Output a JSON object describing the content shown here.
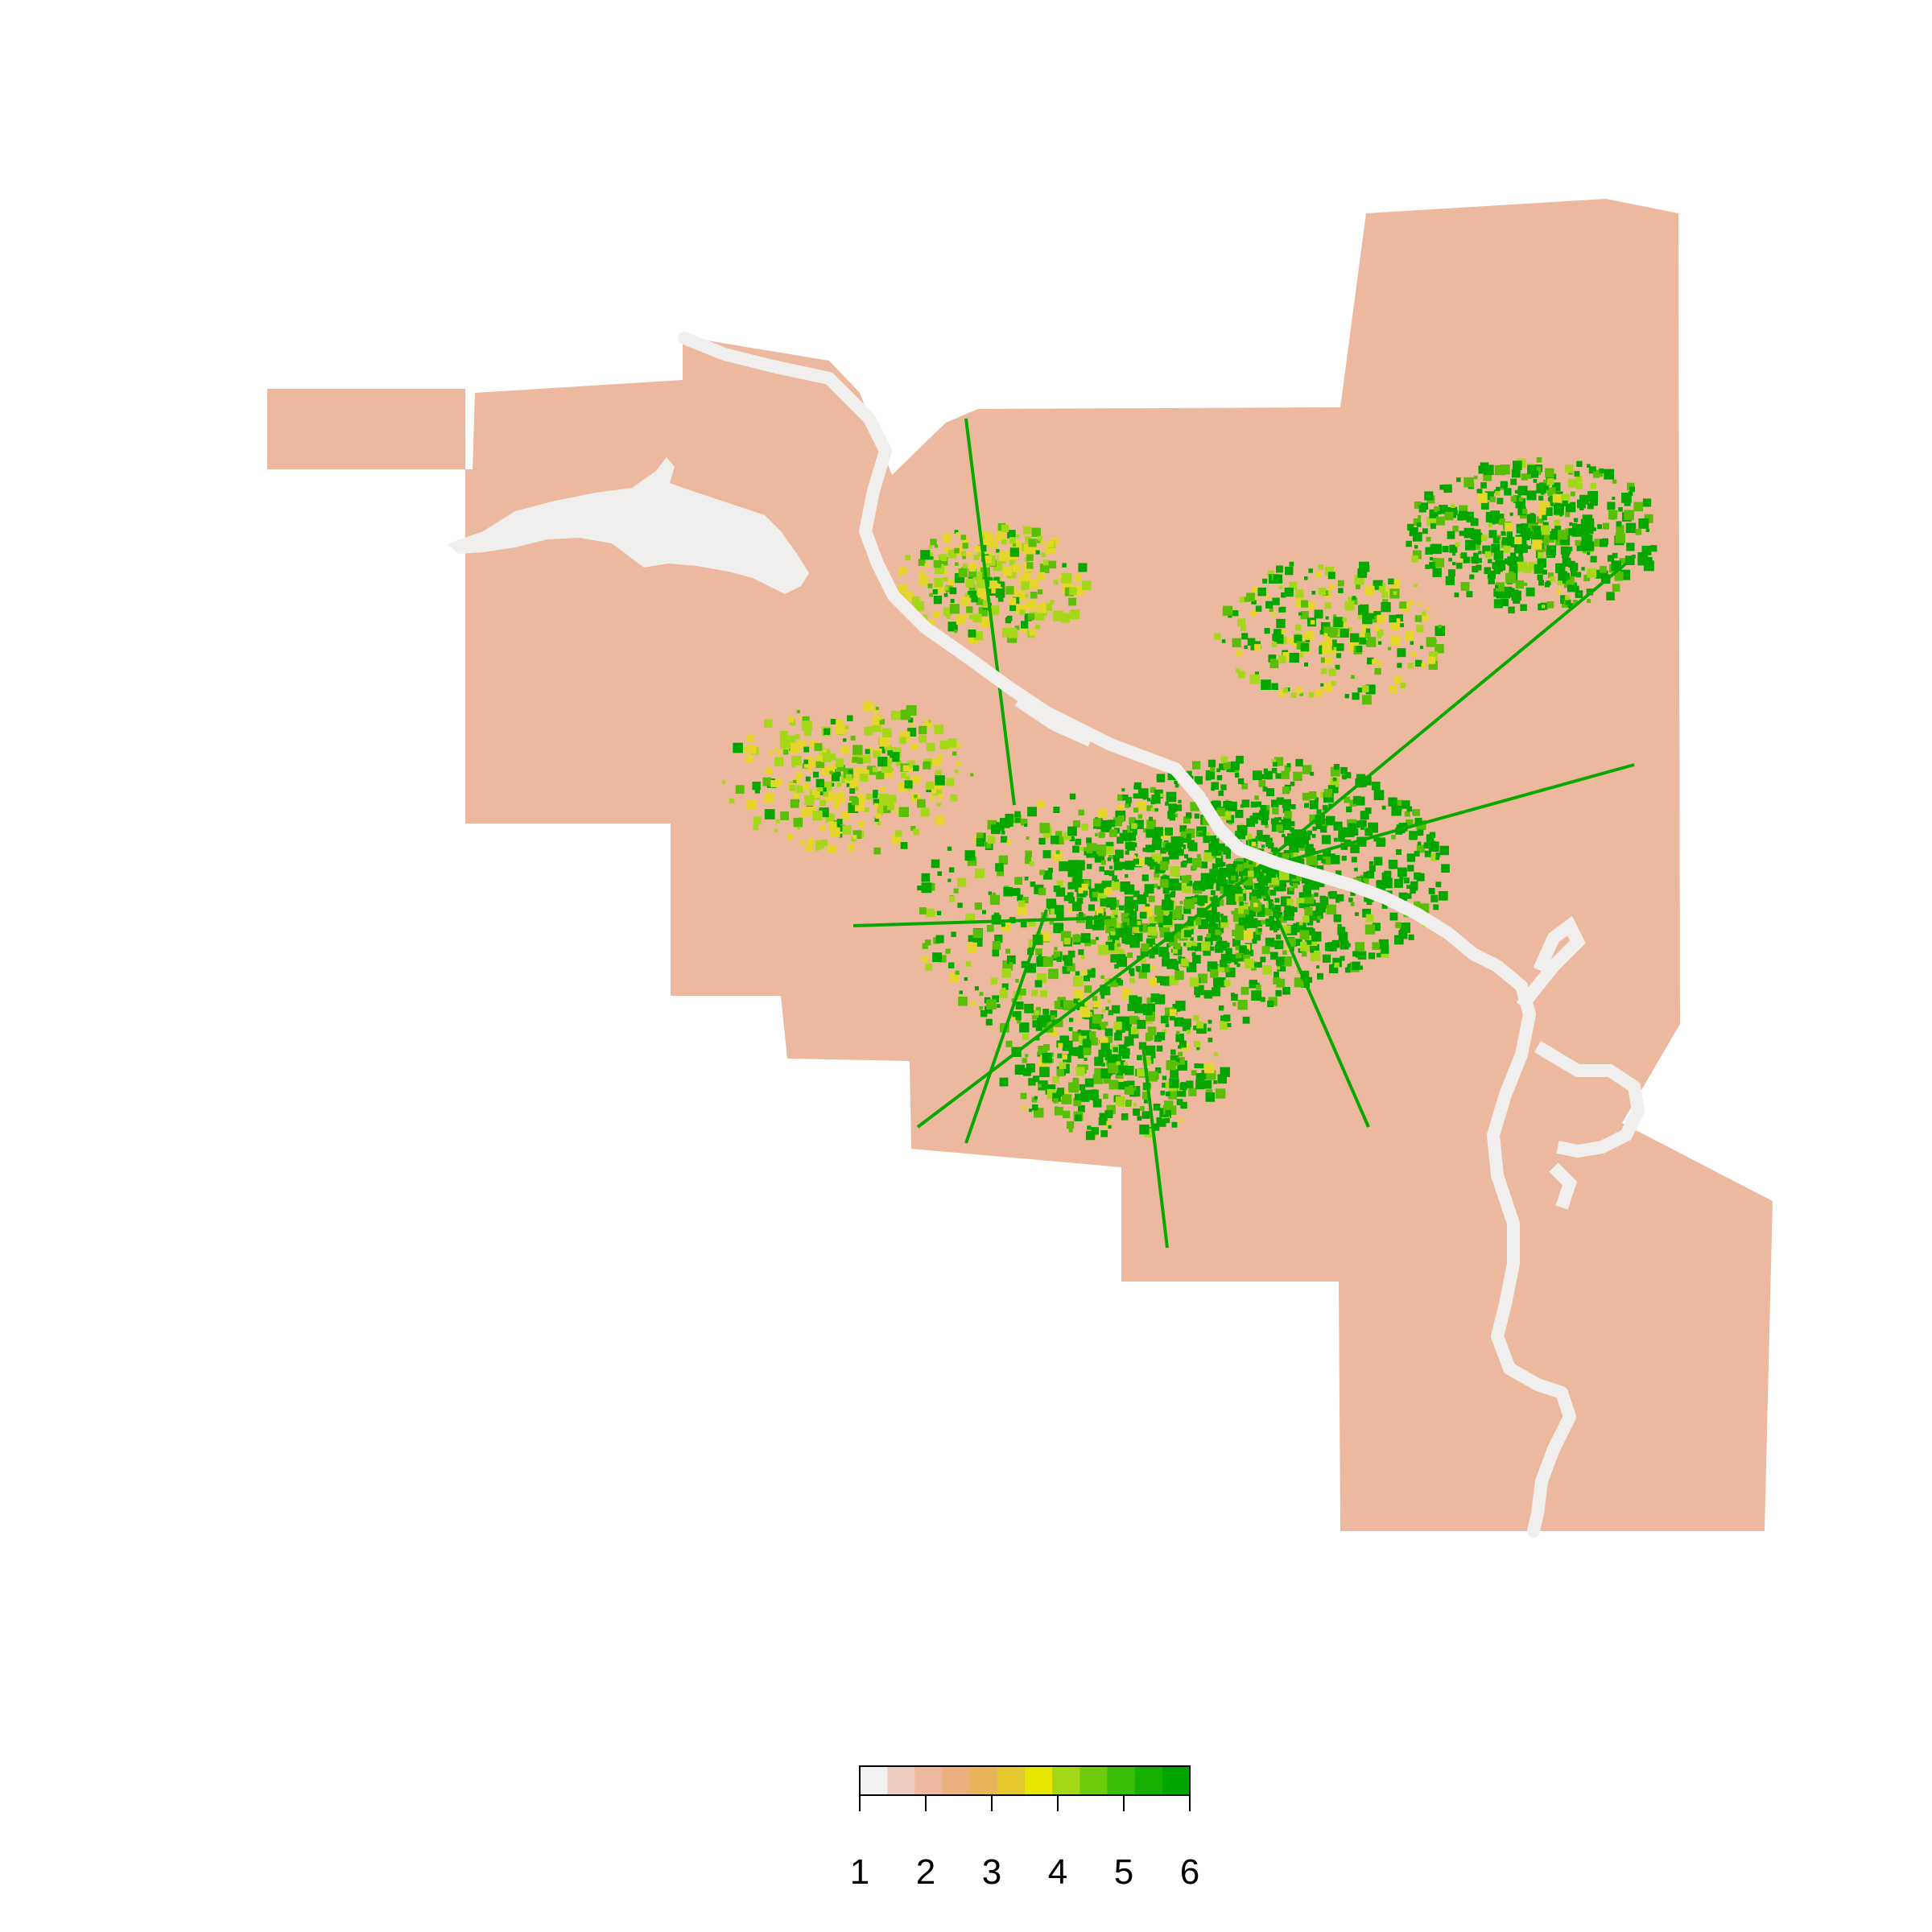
{
  "map": {
    "land_color": "#EDB99E",
    "water_color": "#F0EFEE",
    "urban_colors": [
      "#E6D52A",
      "#A6D81A",
      "#58BF06",
      "#08A800",
      "#00A600"
    ]
  },
  "legend": {
    "scale_colors": [
      "#F2F2F2",
      "#EFCDC3",
      "#EDB99E",
      "#EBB07E",
      "#E8B55A",
      "#E6C92F",
      "#E6E600",
      "#A6D81A",
      "#6FCC0C",
      "#3ABE05",
      "#16B002",
      "#00A600"
    ],
    "ticks": [
      "1",
      "2",
      "3",
      "4",
      "5",
      "6"
    ]
  }
}
